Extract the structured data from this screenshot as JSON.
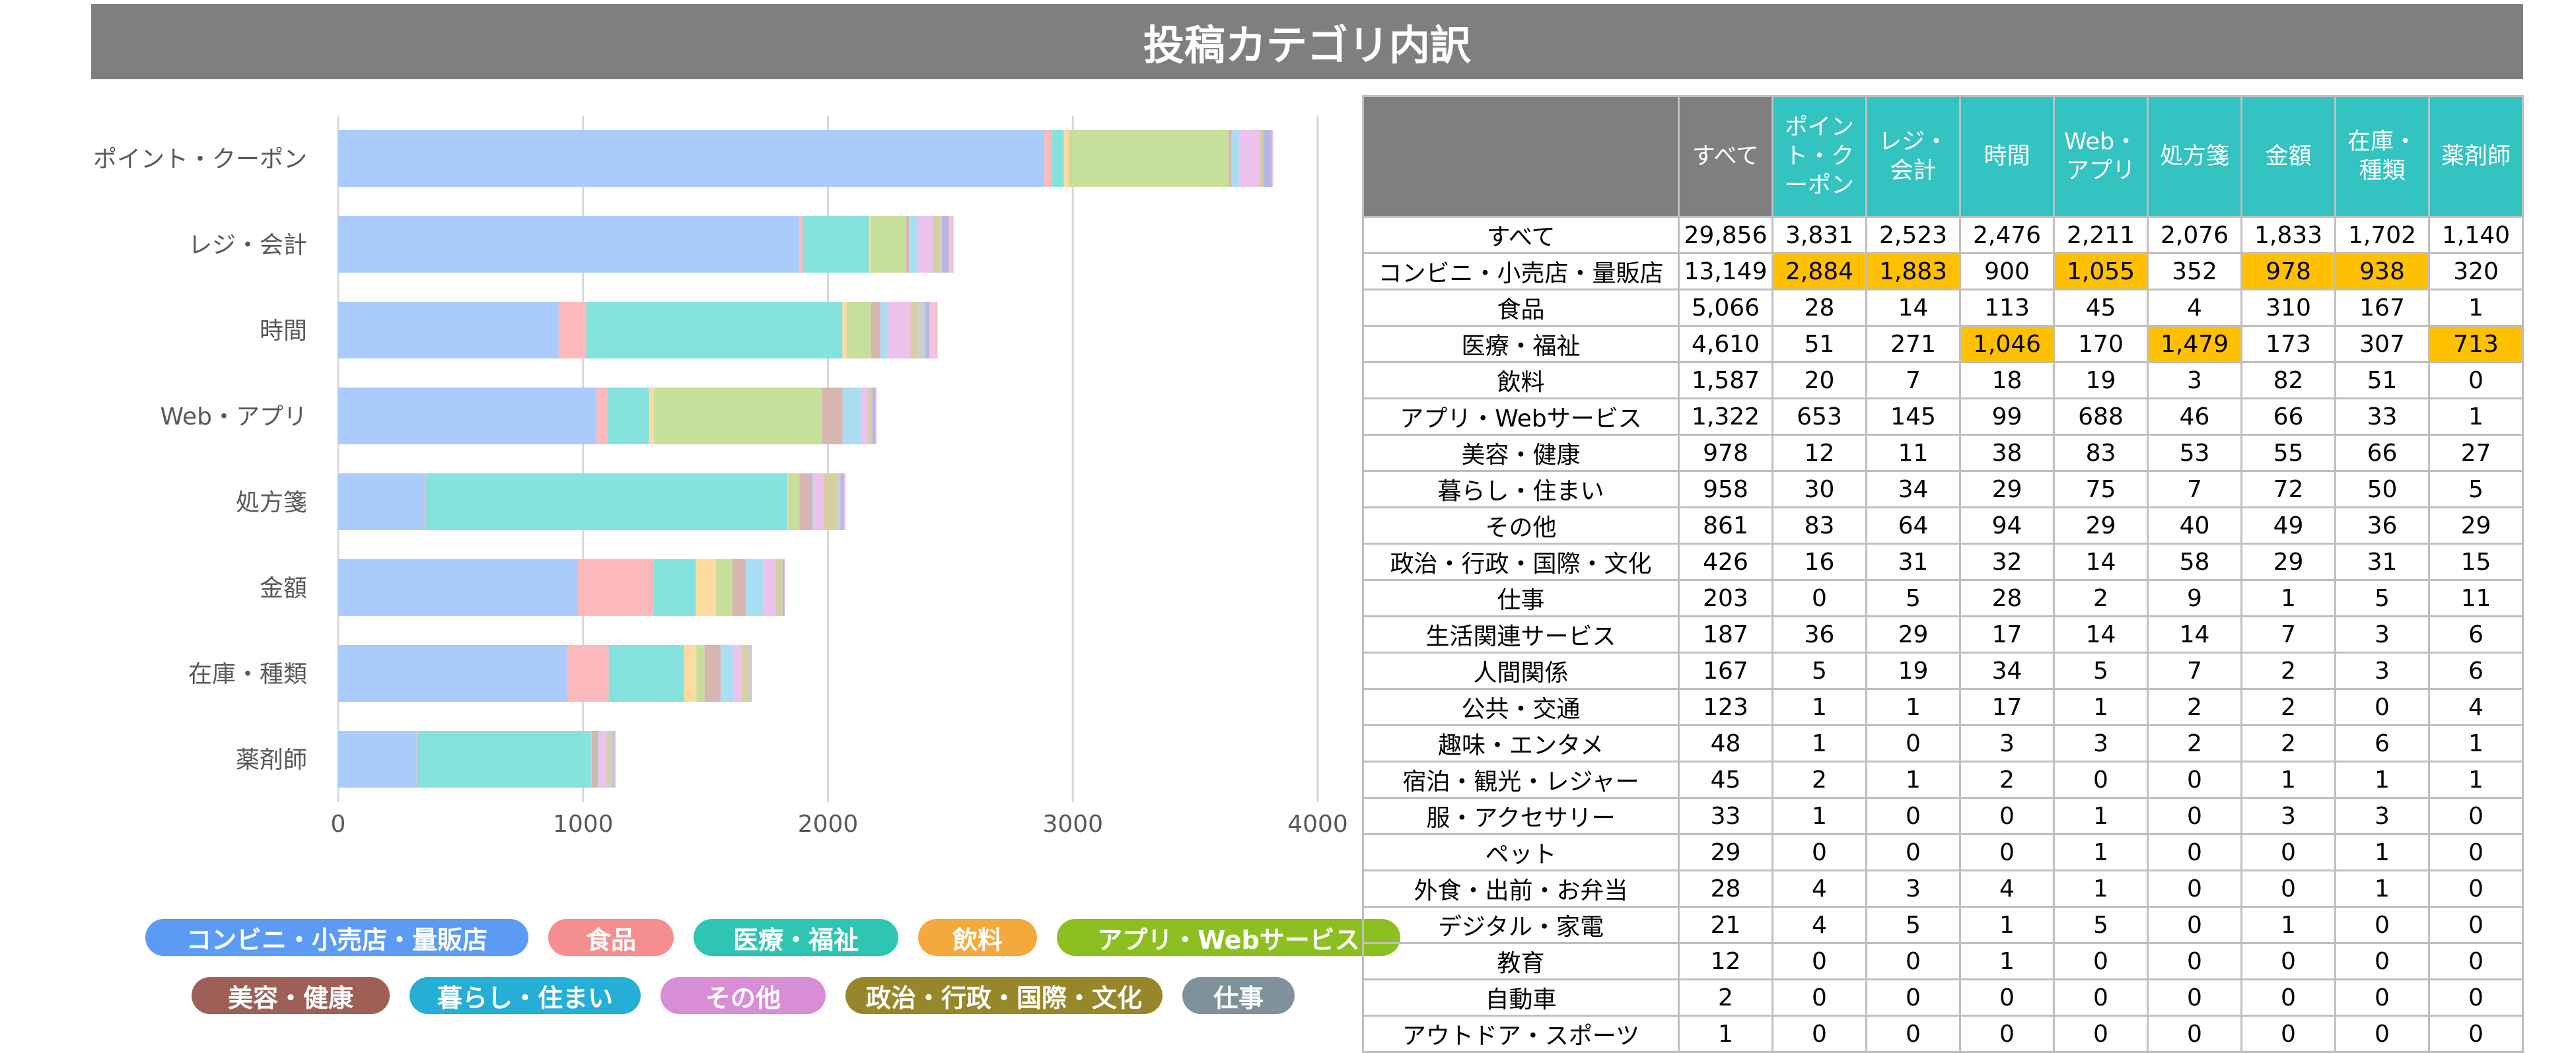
{
  "title": "投稿カテゴリ内訳",
  "colors": {
    "header_bg": "#7f7f7f",
    "table_header": "#33c3c0",
    "highlight": "#ffc000"
  },
  "legend": [
    {
      "label": "コンビニ・小売店・量販店",
      "color": "#5b9bf4"
    },
    {
      "label": "食品",
      "color": "#f58f8f"
    },
    {
      "label": "医療・福祉",
      "color": "#2ec6b2"
    },
    {
      "label": "飲料",
      "color": "#f5a83c"
    },
    {
      "label": "アプリ・Webサービス",
      "color": "#8cc020"
    },
    {
      "label": "美容・健康",
      "color": "#9e5f57"
    },
    {
      "label": "暮らし・住まい",
      "color": "#25aed6"
    },
    {
      "label": "その他",
      "color": "#d88ed6"
    },
    {
      "label": "政治・行政・国際・文化",
      "color": "#98872a"
    },
    {
      "label": "仕事",
      "color": "#7f919a"
    }
  ],
  "chart_data": {
    "type": "bar",
    "orientation": "horizontal",
    "stacked": true,
    "categories": [
      "ポイント・クーポン",
      "レジ・会計",
      "時間",
      "Web・アプリ",
      "処方箋",
      "金額",
      "在庫・種類",
      "薬剤師"
    ],
    "xlim": [
      0,
      4000
    ],
    "xticks": [
      "0",
      "1000",
      "2000",
      "3000",
      "4000"
    ],
    "grid": true,
    "series": [
      {
        "name": "コンビニ・小売店・量販店",
        "color": "#aacbfb",
        "values": [
          2884,
          1883,
          900,
          1055,
          352,
          978,
          938,
          320
        ]
      },
      {
        "name": "食品",
        "color": "#fcb9bb",
        "values": [
          28,
          14,
          113,
          45,
          4,
          310,
          167,
          1
        ]
      },
      {
        "name": "医療・福祉",
        "color": "#85e2dc",
        "values": [
          51,
          271,
          1046,
          170,
          1479,
          173,
          307,
          713
        ]
      },
      {
        "name": "飲料",
        "color": "#fddba0",
        "values": [
          20,
          7,
          18,
          19,
          3,
          82,
          51,
          0
        ]
      },
      {
        "name": "アプリ・Webサービス",
        "color": "#c6df9a",
        "values": [
          653,
          145,
          99,
          688,
          46,
          66,
          33,
          1
        ]
      },
      {
        "name": "美容・健康",
        "color": "#d7b5b1",
        "values": [
          12,
          11,
          38,
          83,
          53,
          55,
          66,
          27
        ]
      },
      {
        "name": "暮らし・住まい",
        "color": "#a9def2",
        "values": [
          30,
          34,
          29,
          75,
          7,
          72,
          50,
          5
        ]
      },
      {
        "name": "その他",
        "color": "#ecc2ec",
        "values": [
          83,
          64,
          94,
          29,
          40,
          49,
          36,
          29
        ]
      },
      {
        "name": "政治・行政・国際・文化",
        "color": "#d6cfa2",
        "values": [
          16,
          31,
          32,
          14,
          58,
          29,
          31,
          15
        ]
      },
      {
        "name": "仕事",
        "color": "#c6d0d5",
        "values": [
          0,
          5,
          28,
          2,
          9,
          1,
          5,
          11
        ]
      },
      {
        "name": "生活関連サービス",
        "color": "#b6b6e6",
        "values": [
          36,
          29,
          17,
          14,
          14,
          7,
          3,
          6
        ]
      },
      {
        "name": "人間関係",
        "color": "#f2c4d6",
        "values": [
          5,
          19,
          34,
          5,
          7,
          2,
          3,
          6
        ]
      }
    ]
  },
  "table": {
    "headers": [
      "すべて",
      "ポイント・クーポン",
      "レジ・会計",
      "時間",
      "Web・アプリ",
      "処方箋",
      "金額",
      "在庫・種類",
      "薬剤師"
    ],
    "rows": [
      {
        "label": "すべて",
        "values": [
          "29,856",
          "3,831",
          "2,523",
          "2,476",
          "2,211",
          "2,076",
          "1,833",
          "1,702",
          "1,140"
        ],
        "hl": []
      },
      {
        "label": "コンビニ・小売店・量販店",
        "values": [
          "13,149",
          "2,884",
          "1,883",
          "900",
          "1,055",
          "352",
          "978",
          "938",
          "320"
        ],
        "hl": [
          1,
          2,
          4,
          6,
          7
        ]
      },
      {
        "label": "食品",
        "values": [
          "5,066",
          "28",
          "14",
          "113",
          "45",
          "4",
          "310",
          "167",
          "1"
        ],
        "hl": []
      },
      {
        "label": "医療・福祉",
        "values": [
          "4,610",
          "51",
          "271",
          "1,046",
          "170",
          "1,479",
          "173",
          "307",
          "713"
        ],
        "hl": [
          3,
          5,
          8
        ]
      },
      {
        "label": "飲料",
        "values": [
          "1,587",
          "20",
          "7",
          "18",
          "19",
          "3",
          "82",
          "51",
          "0"
        ],
        "hl": []
      },
      {
        "label": "アプリ・Webサービス",
        "values": [
          "1,322",
          "653",
          "145",
          "99",
          "688",
          "46",
          "66",
          "33",
          "1"
        ],
        "hl": []
      },
      {
        "label": "美容・健康",
        "values": [
          "978",
          "12",
          "11",
          "38",
          "83",
          "53",
          "55",
          "66",
          "27"
        ],
        "hl": []
      },
      {
        "label": "暮らし・住まい",
        "values": [
          "958",
          "30",
          "34",
          "29",
          "75",
          "7",
          "72",
          "50",
          "5"
        ],
        "hl": []
      },
      {
        "label": "その他",
        "values": [
          "861",
          "83",
          "64",
          "94",
          "29",
          "40",
          "49",
          "36",
          "29"
        ],
        "hl": []
      },
      {
        "label": "政治・行政・国際・文化",
        "values": [
          "426",
          "16",
          "31",
          "32",
          "14",
          "58",
          "29",
          "31",
          "15"
        ],
        "hl": []
      },
      {
        "label": "仕事",
        "values": [
          "203",
          "0",
          "5",
          "28",
          "2",
          "9",
          "1",
          "5",
          "11"
        ],
        "hl": []
      },
      {
        "label": "生活関連サービス",
        "values": [
          "187",
          "36",
          "29",
          "17",
          "14",
          "14",
          "7",
          "3",
          "6"
        ],
        "hl": []
      },
      {
        "label": "人間関係",
        "values": [
          "167",
          "5",
          "19",
          "34",
          "5",
          "7",
          "2",
          "3",
          "6"
        ],
        "hl": []
      },
      {
        "label": "公共・交通",
        "values": [
          "123",
          "1",
          "1",
          "17",
          "1",
          "2",
          "2",
          "0",
          "4"
        ],
        "hl": []
      },
      {
        "label": "趣味・エンタメ",
        "values": [
          "48",
          "1",
          "0",
          "3",
          "3",
          "2",
          "2",
          "6",
          "1"
        ],
        "hl": []
      },
      {
        "label": "宿泊・観光・レジャー",
        "values": [
          "45",
          "2",
          "1",
          "2",
          "0",
          "0",
          "1",
          "1",
          "1"
        ],
        "hl": []
      },
      {
        "label": "服・アクセサリー",
        "values": [
          "33",
          "1",
          "0",
          "0",
          "1",
          "0",
          "3",
          "3",
          "0"
        ],
        "hl": []
      },
      {
        "label": "ペット",
        "values": [
          "29",
          "0",
          "0",
          "0",
          "1",
          "0",
          "0",
          "1",
          "0"
        ],
        "hl": []
      },
      {
        "label": "外食・出前・お弁当",
        "values": [
          "28",
          "4",
          "3",
          "4",
          "1",
          "0",
          "0",
          "1",
          "0"
        ],
        "hl": []
      },
      {
        "label": "デジタル・家電",
        "values": [
          "21",
          "4",
          "5",
          "1",
          "5",
          "0",
          "1",
          "0",
          "0"
        ],
        "hl": []
      },
      {
        "label": "教育",
        "values": [
          "12",
          "0",
          "0",
          "1",
          "0",
          "0",
          "0",
          "0",
          "0"
        ],
        "hl": []
      },
      {
        "label": "自動車",
        "values": [
          "2",
          "0",
          "0",
          "0",
          "0",
          "0",
          "0",
          "0",
          "0"
        ],
        "hl": []
      },
      {
        "label": "アウトドア・スポーツ",
        "values": [
          "1",
          "0",
          "0",
          "0",
          "0",
          "0",
          "0",
          "0",
          "0"
        ],
        "hl": []
      }
    ]
  }
}
